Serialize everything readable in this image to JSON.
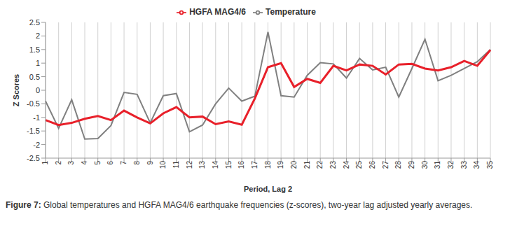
{
  "chart_data": {
    "type": "line",
    "x_label": "Period, Lag 2",
    "y_label": "Z Scores",
    "categories": [
      "1",
      "2",
      "3",
      "4",
      "5",
      "6",
      "7",
      "8",
      "9",
      "10",
      "11",
      "12",
      "13",
      "14",
      "15",
      "16",
      "17",
      "18",
      "19",
      "20",
      "21",
      "22",
      "23",
      "24",
      "25",
      "26",
      "27",
      "28",
      "29",
      "30",
      "31",
      "32",
      "33",
      "34",
      "35"
    ],
    "series": [
      {
        "name": "Temperature",
        "color": "#808080",
        "values": [
          -0.4,
          -1.4,
          -0.35,
          -1.8,
          -1.78,
          -1.3,
          -0.08,
          -0.15,
          -1.2,
          -0.2,
          -0.12,
          -1.53,
          -1.28,
          -0.5,
          0.08,
          -0.4,
          -0.22,
          2.15,
          -0.2,
          -0.25,
          0.55,
          1.02,
          0.97,
          0.45,
          1.17,
          0.75,
          0.85,
          -0.25,
          0.8,
          1.88,
          0.35,
          0.55,
          0.8,
          1.05,
          1.5
        ]
      },
      {
        "name": "HGFA MAG4/6",
        "color": "#e8202a",
        "values": [
          -1.1,
          -1.28,
          -1.2,
          -1.05,
          -0.95,
          -1.1,
          -0.75,
          -1.0,
          -1.22,
          -0.85,
          -0.62,
          -1.0,
          -0.97,
          -1.25,
          -1.15,
          -1.27,
          -0.3,
          0.85,
          1.0,
          0.12,
          0.42,
          0.27,
          0.9,
          0.73,
          0.95,
          0.9,
          0.58,
          0.95,
          0.97,
          0.8,
          0.73,
          0.85,
          1.08,
          0.9,
          1.48
        ]
      }
    ],
    "ylim": [
      -2.5,
      2.5
    ],
    "yticks": [
      -2.5,
      -2,
      -1.5,
      -1,
      -0.5,
      0,
      0.5,
      1,
      1.5,
      2,
      2.5
    ],
    "grid": true,
    "legend": "top"
  },
  "caption": {
    "label": "Figure 7:",
    "text": "Global temperatures and HGFA MAG4/6 earthquake frequencies (z-scores), two-year lag adjusted yearly averages."
  }
}
